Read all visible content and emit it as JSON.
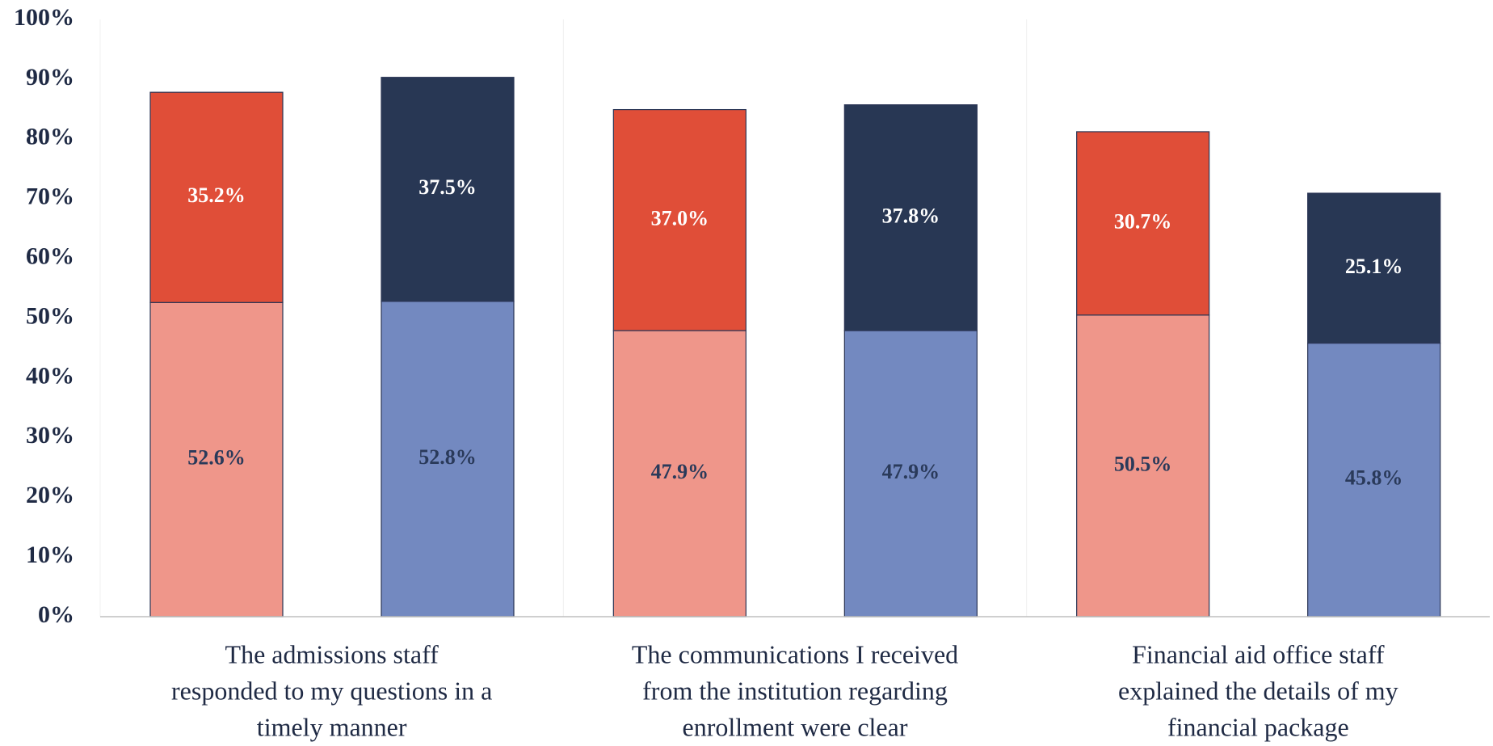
{
  "chart_data": {
    "type": "stacked_bar",
    "categories": [
      [
        "The admissions staff",
        "responded to my questions in a",
        "timely manner"
      ],
      [
        "The communications I received",
        "from the institution regarding",
        "enrollment were clear"
      ],
      [
        "Financial aid office staff",
        "explained the details of my",
        "financial package"
      ]
    ],
    "series": [
      {
        "stack": 0,
        "color": "#ef968a",
        "label_color": "#2a3a5a",
        "values": [
          52.6,
          47.9,
          50.5
        ],
        "value_labels": [
          "52.6%",
          "47.9%",
          "50.5%"
        ]
      },
      {
        "stack": 0,
        "color": "#e04e38",
        "label_color": "#ffffff",
        "values": [
          35.2,
          37.0,
          30.7
        ],
        "value_labels": [
          "35.2%",
          "37.0%",
          "30.7%"
        ]
      },
      {
        "stack": 1,
        "color": "#7389c0",
        "label_color": "#2a3a5a",
        "values": [
          52.8,
          47.9,
          45.8
        ],
        "value_labels": [
          "52.8%",
          "47.9%",
          "45.8%"
        ]
      },
      {
        "stack": 1,
        "color": "#283754",
        "label_color": "#ffffff",
        "values": [
          37.5,
          37.8,
          25.1
        ],
        "value_labels": [
          "37.5%",
          "37.8%",
          "25.1%"
        ]
      }
    ],
    "ylim": [
      0,
      100
    ],
    "yticks": [
      {
        "value": 0,
        "label": "0%"
      },
      {
        "value": 10,
        "label": "10%"
      },
      {
        "value": 20,
        "label": "20%"
      },
      {
        "value": 30,
        "label": "30%"
      },
      {
        "value": 40,
        "label": "40%"
      },
      {
        "value": 50,
        "label": "50%"
      },
      {
        "value": 60,
        "label": "60%"
      },
      {
        "value": 70,
        "label": "70%"
      },
      {
        "value": 80,
        "label": "80%"
      },
      {
        "value": 90,
        "label": "90%"
      },
      {
        "value": 100,
        "label": "100%"
      }
    ],
    "grid": false
  }
}
